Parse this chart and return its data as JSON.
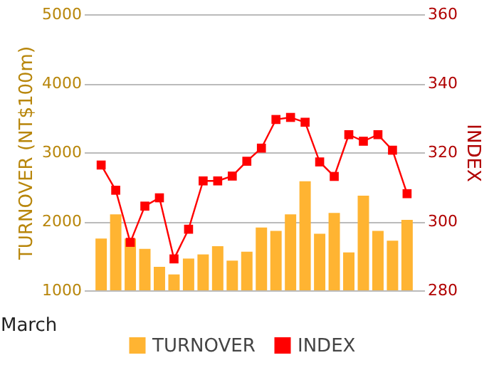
{
  "chart_data": {
    "type": "bar",
    "xlabel": "March",
    "ylabel": "TURNOVER (NT$100m)",
    "y2label": "INDEX",
    "categories": [
      null,
      null,
      null,
      null,
      null,
      null,
      null,
      null,
      null,
      null,
      null,
      null,
      null,
      null,
      null,
      null,
      null,
      null,
      null,
      null,
      null,
      null
    ],
    "series": [
      {
        "name": "TURNOVER",
        "color": "#ffb432",
        "values": [
          1750,
          2100,
          1750,
          1600,
          1340,
          1230,
          1460,
          1520,
          1640,
          1430,
          1560,
          1910,
          1860,
          2100,
          2580,
          1820,
          2120,
          1550,
          2370,
          1860,
          1720,
          2020
        ]
      },
      {
        "name": "INDEX",
        "type": "line",
        "axis": "y2",
        "color": "#ff0000",
        "marker": "square",
        "values": [
          316.3,
          309.0,
          293.9,
          304.4,
          306.8,
          289.1,
          297.7,
          311.7,
          311.7,
          313.1,
          317.4,
          321.2,
          329.5,
          330.1,
          328.7,
          317.2,
          313.0,
          325.1,
          323.2,
          325.1,
          320.6,
          308.0
        ]
      }
    ],
    "ylim": [
      1000,
      5000
    ],
    "yticks": [
      1000,
      2000,
      3000,
      4000,
      5000
    ],
    "y2lim": [
      280,
      360
    ],
    "y2ticks": [
      280,
      300,
      320,
      340,
      360
    ],
    "grid": "y",
    "legend": "bottom"
  }
}
